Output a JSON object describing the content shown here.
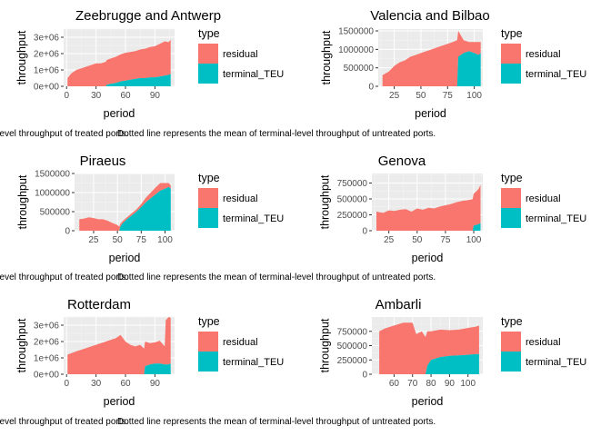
{
  "legend": {
    "title": "type",
    "entries": [
      {
        "label": "residual",
        "color": "#F8766D"
      },
      {
        "label": "terminal_TEU",
        "color": "#00BFC4"
      }
    ]
  },
  "captions": {
    "left_text": "-level throughput of treated ports.",
    "right_text": "Dotted line represents the mean of terminal-level throughput of untreated ports."
  },
  "chart_data": [
    {
      "type": "area",
      "title": "Zeebrugge and Antwerp",
      "xlabel": "period",
      "ylabel": "throughput",
      "xlim": [
        -3,
        110
      ],
      "ylim": [
        0,
        3500000
      ],
      "xticks": [
        0,
        30,
        60,
        90
      ],
      "yticks": [
        0,
        1000000,
        2000000,
        3000000
      ],
      "ytick_labels": [
        "0e+00",
        "1e+06",
        "2e+06",
        "3e+06"
      ],
      "grid": true,
      "stack_order": [
        "terminal_TEU",
        "residual"
      ],
      "series": [
        {
          "name": "residual",
          "x": [
            1,
            5,
            10,
            15,
            20,
            25,
            30,
            35,
            40,
            45,
            50,
            55,
            60,
            65,
            70,
            75,
            80,
            85,
            90,
            95,
            100,
            104,
            106
          ],
          "values": [
            500000,
            800000,
            1000000,
            1100000,
            1200000,
            1300000,
            1400000,
            1400000,
            1500000,
            1550000,
            1600000,
            1650000,
            1700000,
            1700000,
            1700000,
            1750000,
            1800000,
            1850000,
            1900000,
            2000000,
            2100000,
            2000000,
            2100000
          ]
        },
        {
          "name": "terminal_TEU",
          "x": [
            1,
            40,
            41,
            45,
            50,
            55,
            60,
            65,
            70,
            75,
            80,
            85,
            90,
            95,
            100,
            104,
            106
          ],
          "values": [
            0,
            0,
            100000,
            150000,
            200000,
            300000,
            350000,
            400000,
            450000,
            500000,
            500000,
            550000,
            550000,
            600000,
            650000,
            700000,
            750000
          ]
        }
      ]
    },
    {
      "type": "area",
      "title": "Valencia and Bilbao",
      "xlabel": "period",
      "ylabel": "throughput",
      "xlim": [
        10,
        108
      ],
      "ylim": [
        0,
        1550000
      ],
      "xticks": [
        25,
        50,
        75,
        100
      ],
      "yticks": [
        0,
        500000,
        1000000,
        1500000
      ],
      "ytick_labels": [
        "0",
        "500000",
        "1000000",
        "1500000"
      ],
      "grid": true,
      "stack_order": [
        "terminal_TEU",
        "residual"
      ],
      "series": [
        {
          "name": "residual",
          "x": [
            14,
            20,
            25,
            30,
            35,
            40,
            45,
            50,
            55,
            60,
            65,
            70,
            75,
            80,
            84,
            85,
            90,
            95,
            100,
            104,
            106
          ],
          "values": [
            300000,
            400000,
            550000,
            650000,
            700000,
            800000,
            850000,
            900000,
            950000,
            1000000,
            1050000,
            1100000,
            1150000,
            1200000,
            1250000,
            700000,
            350000,
            250000,
            300000,
            350000,
            300000
          ]
        },
        {
          "name": "terminal_TEU",
          "x": [
            14,
            84,
            85,
            90,
            95,
            100,
            104,
            106
          ],
          "values": [
            0,
            0,
            800000,
            900000,
            950000,
            900000,
            850000,
            900000
          ]
        }
      ]
    },
    {
      "type": "area",
      "title": "Piraeus",
      "xlabel": "period",
      "ylabel": "throughput",
      "xlim": [
        5,
        110
      ],
      "ylim": [
        0,
        1500000
      ],
      "xticks": [
        25,
        50,
        75,
        100
      ],
      "yticks": [
        0,
        500000,
        1000000,
        1500000
      ],
      "ytick_labels": [
        "0",
        "500000",
        "1000000",
        "1500000"
      ],
      "grid": true,
      "stack_order": [
        "terminal_TEU",
        "residual"
      ],
      "series": [
        {
          "name": "residual",
          "x": [
            10,
            15,
            20,
            25,
            30,
            35,
            40,
            45,
            50,
            53,
            55,
            60,
            65,
            70,
            75,
            80,
            85,
            90,
            95,
            100,
            104,
            106
          ],
          "values": [
            300000,
            320000,
            350000,
            330000,
            300000,
            300000,
            260000,
            200000,
            150000,
            80000,
            60000,
            50000,
            60000,
            60000,
            80000,
            120000,
            150000,
            180000,
            200000,
            150000,
            100000,
            80000
          ]
        },
        {
          "name": "terminal_TEU",
          "x": [
            10,
            52,
            53,
            55,
            60,
            65,
            70,
            75,
            80,
            85,
            90,
            95,
            100,
            104,
            106
          ],
          "values": [
            0,
            0,
            100000,
            180000,
            300000,
            400000,
            500000,
            620000,
            750000,
            850000,
            950000,
            1050000,
            1100000,
            1150000,
            1100000
          ]
        }
      ]
    },
    {
      "type": "area",
      "title": "Genova",
      "xlabel": "period",
      "ylabel": "throughput",
      "xlim": [
        10,
        108
      ],
      "ylim": [
        0,
        900000
      ],
      "xticks": [
        25,
        50,
        75,
        100
      ],
      "yticks": [
        0,
        250000,
        500000,
        750000
      ],
      "ytick_labels": [
        "0",
        "250000",
        "500000",
        "750000"
      ],
      "grid": true,
      "stack_order": [
        "terminal_TEU",
        "residual"
      ],
      "series": [
        {
          "name": "residual",
          "x": [
            14,
            20,
            25,
            30,
            35,
            40,
            45,
            50,
            55,
            60,
            65,
            70,
            75,
            80,
            85,
            90,
            95,
            100,
            104,
            106
          ],
          "values": [
            300000,
            280000,
            320000,
            310000,
            330000,
            340000,
            300000,
            350000,
            330000,
            360000,
            350000,
            380000,
            400000,
            420000,
            450000,
            470000,
            480000,
            500000,
            550000,
            600000
          ]
        },
        {
          "name": "terminal_TEU",
          "x": [
            14,
            99,
            100,
            104,
            106
          ],
          "values": [
            0,
            0,
            80000,
            100000,
            120000
          ]
        }
      ]
    },
    {
      "type": "area",
      "title": "Rotterdam",
      "xlabel": "period",
      "ylabel": "throughput",
      "xlim": [
        -3,
        110
      ],
      "ylim": [
        0,
        3500000
      ],
      "xticks": [
        0,
        30,
        60,
        90
      ],
      "yticks": [
        0,
        1000000,
        2000000,
        3000000
      ],
      "ytick_labels": [
        "0e+00",
        "1e+06",
        "2e+06",
        "3e+06"
      ],
      "grid": true,
      "stack_order": [
        "terminal_TEU",
        "residual"
      ],
      "series": [
        {
          "name": "residual",
          "x": [
            1,
            10,
            20,
            30,
            40,
            50,
            55,
            60,
            65,
            70,
            75,
            80,
            85,
            90,
            95,
            100,
            101,
            104,
            106
          ],
          "values": [
            1200000,
            1400000,
            1600000,
            1800000,
            2000000,
            2200000,
            2400000,
            2000000,
            1800000,
            1700000,
            1800000,
            1500000,
            1300000,
            1300000,
            1400000,
            1100000,
            2700000,
            2900000,
            2800000
          ]
        },
        {
          "name": "terminal_TEU",
          "x": [
            1,
            79,
            80,
            85,
            90,
            95,
            100,
            104,
            106
          ],
          "values": [
            0,
            0,
            500000,
            600000,
            650000,
            650000,
            600000,
            600000,
            650000
          ]
        }
      ]
    },
    {
      "type": "area",
      "title": "Ambarli",
      "xlabel": "period",
      "ylabel": "throughput",
      "xlim": [
        48,
        108
      ],
      "ylim": [
        0,
        1000000
      ],
      "xticks": [
        60,
        70,
        80,
        90,
        100
      ],
      "yticks": [
        0,
        250000,
        500000,
        750000
      ],
      "ytick_labels": [
        "0",
        "250000",
        "500000",
        "750000"
      ],
      "grid": true,
      "stack_order": [
        "terminal_TEU",
        "residual"
      ],
      "series": [
        {
          "name": "residual",
          "x": [
            52,
            55,
            60,
            65,
            70,
            72,
            75,
            78,
            80,
            85,
            90,
            95,
            100,
            104,
            106
          ],
          "values": [
            750000,
            800000,
            850000,
            900000,
            900000,
            700000,
            750000,
            600000,
            500000,
            480000,
            450000,
            450000,
            470000,
            480000,
            500000
          ]
        },
        {
          "name": "terminal_TEU",
          "x": [
            52,
            77,
            78,
            80,
            85,
            90,
            95,
            100,
            104,
            106
          ],
          "values": [
            0,
            0,
            150000,
            250000,
            300000,
            320000,
            330000,
            340000,
            350000,
            350000
          ]
        }
      ]
    }
  ]
}
